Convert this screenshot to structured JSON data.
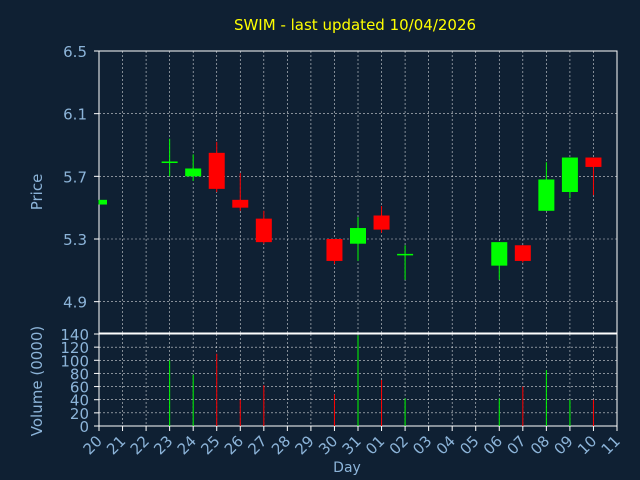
{
  "chart_data": {
    "type": "candlestick",
    "title": "SWIM - last updated 10/04/2026",
    "xlabel": "Day",
    "price": {
      "ylabel": "Price",
      "ylim": [
        4.7,
        6.5
      ],
      "yticks": [
        "4.9",
        "5.3",
        "5.7",
        "6.1",
        "6.5"
      ]
    },
    "volume": {
      "ylabel": "Volume (0000)",
      "ylim": [
        0,
        140
      ],
      "yticks": [
        "0",
        "20",
        "40",
        "60",
        "80",
        "100",
        "120",
        "140"
      ]
    },
    "x_labels": [
      "20",
      "21",
      "22",
      "23",
      "24",
      "25",
      "26",
      "27",
      "28",
      "29",
      "30",
      "31",
      "01",
      "02",
      "03",
      "04",
      "05",
      "06",
      "07",
      "08",
      "09",
      "10",
      "11"
    ],
    "grid": true,
    "candles": [
      {
        "i": 0,
        "open": 5.52,
        "close": 5.55,
        "high": 5.55,
        "low": 5.52,
        "volume": 0
      },
      {
        "i": 3,
        "open": 5.79,
        "close": 5.79,
        "high": 5.94,
        "low": 5.7,
        "volume": 100
      },
      {
        "i": 4,
        "open": 5.7,
        "close": 5.75,
        "high": 5.84,
        "low": 5.67,
        "volume": 78
      },
      {
        "i": 5,
        "open": 5.85,
        "close": 5.62,
        "high": 5.92,
        "low": 5.6,
        "volume": 110
      },
      {
        "i": 6,
        "open": 5.55,
        "close": 5.5,
        "high": 5.72,
        "low": 5.48,
        "volume": 40
      },
      {
        "i": 7,
        "open": 5.43,
        "close": 5.28,
        "high": 5.48,
        "low": 5.27,
        "volume": 62
      },
      {
        "i": 10,
        "open": 5.3,
        "close": 5.16,
        "high": 5.3,
        "low": 5.14,
        "volume": 48
      },
      {
        "i": 11,
        "open": 5.27,
        "close": 5.37,
        "high": 5.44,
        "low": 5.16,
        "volume": 138
      },
      {
        "i": 12,
        "open": 5.45,
        "close": 5.36,
        "high": 5.51,
        "low": 5.34,
        "volume": 70
      },
      {
        "i": 13,
        "open": 5.2,
        "close": 5.2,
        "high": 5.26,
        "low": 5.04,
        "volume": 42
      },
      {
        "i": 17,
        "open": 5.13,
        "close": 5.28,
        "high": 5.28,
        "low": 5.04,
        "volume": 42
      },
      {
        "i": 18,
        "open": 5.26,
        "close": 5.16,
        "high": 5.26,
        "low": 5.15,
        "volume": 60
      },
      {
        "i": 19,
        "open": 5.48,
        "close": 5.68,
        "high": 5.79,
        "low": 5.48,
        "volume": 85
      },
      {
        "i": 20,
        "open": 5.6,
        "close": 5.82,
        "high": 5.82,
        "low": 5.56,
        "volume": 40
      },
      {
        "i": 21,
        "open": 5.82,
        "close": 5.76,
        "high": 5.82,
        "low": 5.58,
        "volume": 40
      }
    ],
    "colors": {
      "up": "#00ff00",
      "down": "#ff0000",
      "axis_text": "#8cb4d9",
      "title": "#ffff00",
      "background": "#0f2033",
      "grid": "#ffffff"
    }
  }
}
